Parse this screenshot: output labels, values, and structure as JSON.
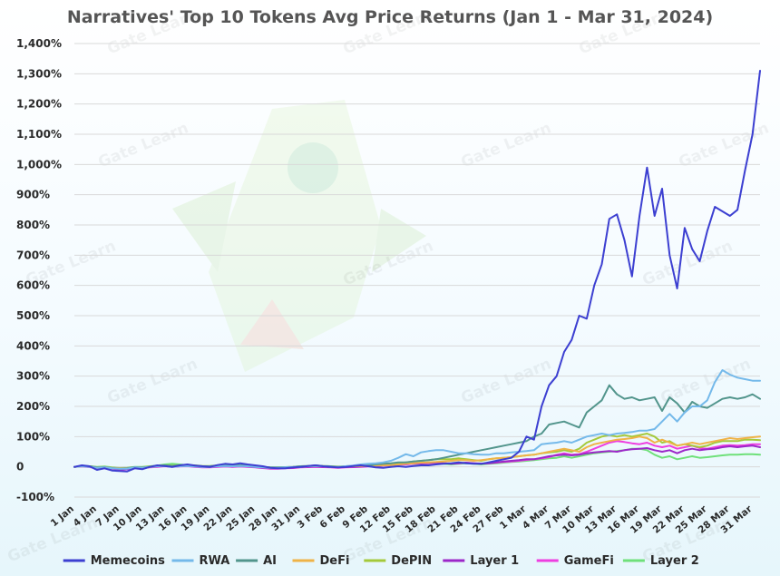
{
  "chart_data": {
    "type": "line",
    "title": "Narratives' Top 10 Tokens Avg Price Returns (Jan 1 - Mar 31, 2024)",
    "xlabel": "",
    "ylabel": "",
    "ylim": [
      -100,
      1400
    ],
    "y_ticks": [
      -100,
      0,
      100,
      200,
      300,
      400,
      500,
      600,
      700,
      800,
      900,
      1000,
      1100,
      1200,
      1300,
      1400
    ],
    "y_tick_labels": [
      "-100%",
      "0",
      "100%",
      "200%",
      "300%",
      "400%",
      "500%",
      "600%",
      "700%",
      "800%",
      "900%",
      "1,000%",
      "1,100%",
      "1,200%",
      "1,300%",
      "1,400%"
    ],
    "x_tick_labels": [
      "1 Jan",
      "4 Jan",
      "7 Jan",
      "10 Jan",
      "13 Jan",
      "16 Jan",
      "19 Jan",
      "22 Jan",
      "25 Jan",
      "28 Jan",
      "31 Jan",
      "3 Feb",
      "6 Feb",
      "9 Feb",
      "12 Feb",
      "15 Feb",
      "18 Feb",
      "21 Feb",
      "24 Feb",
      "27 Feb",
      "1 Mar",
      "4 Mar",
      "7 Mar",
      "10 Mar",
      "13 Mar",
      "16 Mar",
      "19 Mar",
      "22 Mar",
      "25 Mar",
      "28 Mar",
      "31 Mar"
    ],
    "grid": true,
    "legend_position": "bottom",
    "watermark": "Gate Learn",
    "series": [
      {
        "name": "Memecoins",
        "color": "#3c3fd1",
        "values": [
          0,
          5,
          2,
          -10,
          -5,
          -12,
          -14,
          -15,
          -5,
          -8,
          0,
          5,
          3,
          0,
          5,
          8,
          4,
          2,
          0,
          6,
          10,
          8,
          12,
          8,
          5,
          2,
          -3,
          -5,
          -5,
          -2,
          0,
          3,
          5,
          2,
          0,
          -2,
          0,
          3,
          5,
          2,
          -2,
          -3,
          0,
          2,
          0,
          3,
          5,
          5,
          8,
          10,
          12,
          15,
          12,
          10,
          10,
          15,
          20,
          25,
          30,
          50,
          100,
          90,
          200,
          270,
          300,
          380,
          420,
          500,
          490,
          600,
          670,
          820,
          835,
          750,
          630,
          830,
          990,
          830,
          920,
          700,
          590,
          790,
          720,
          680,
          780,
          860,
          845,
          830,
          850,
          980,
          1100,
          1310
        ]
      },
      {
        "name": "RWA",
        "color": "#74b9ea",
        "values": [
          0,
          2,
          0,
          -3,
          -2,
          -5,
          -6,
          -6,
          -2,
          -3,
          0,
          2,
          3,
          0,
          2,
          3,
          1,
          0,
          0,
          2,
          3,
          2,
          3,
          2,
          0,
          -2,
          -3,
          -3,
          -2,
          -1,
          0,
          2,
          3,
          2,
          0,
          0,
          2,
          4,
          8,
          10,
          12,
          15,
          20,
          30,
          42,
          35,
          48,
          52,
          55,
          55,
          50,
          45,
          45,
          42,
          40,
          40,
          45,
          45,
          48,
          50,
          52,
          55,
          75,
          78,
          80,
          85,
          80,
          90,
          100,
          105,
          110,
          105,
          110,
          112,
          115,
          120,
          120,
          125,
          150,
          175,
          150,
          180,
          200,
          200,
          220,
          280,
          320,
          305,
          295,
          290,
          285,
          285
        ]
      },
      {
        "name": "AI",
        "color": "#52958c",
        "values": [
          0,
          3,
          2,
          -2,
          -1,
          -4,
          -6,
          -5,
          -1,
          -2,
          0,
          2,
          5,
          3,
          5,
          6,
          4,
          2,
          2,
          4,
          5,
          4,
          5,
          4,
          2,
          0,
          -2,
          -2,
          -1,
          0,
          2,
          3,
          5,
          3,
          2,
          0,
          2,
          3,
          5,
          5,
          8,
          10,
          12,
          15,
          15,
          18,
          20,
          22,
          25,
          30,
          35,
          40,
          45,
          50,
          55,
          60,
          65,
          70,
          75,
          80,
          85,
          100,
          110,
          140,
          145,
          150,
          140,
          130,
          180,
          200,
          220,
          270,
          240,
          225,
          230,
          220,
          225,
          230,
          185,
          230,
          210,
          180,
          215,
          200,
          195,
          210,
          225,
          230,
          225,
          230,
          240,
          225
        ]
      },
      {
        "name": "DeFi",
        "color": "#efb347",
        "values": [
          0,
          2,
          1,
          -2,
          -1,
          -3,
          -5,
          -5,
          -2,
          -2,
          0,
          2,
          4,
          2,
          3,
          4,
          3,
          1,
          1,
          3,
          4,
          3,
          4,
          3,
          1,
          -1,
          -3,
          -3,
          -2,
          -1,
          1,
          2,
          3,
          2,
          1,
          0,
          1,
          2,
          3,
          3,
          4,
          5,
          6,
          8,
          10,
          12,
          14,
          15,
          16,
          18,
          20,
          22,
          22,
          20,
          22,
          25,
          28,
          30,
          32,
          35,
          38,
          40,
          45,
          50,
          55,
          60,
          55,
          50,
          65,
          75,
          80,
          85,
          90,
          92,
          95,
          100,
          95,
          80,
          90,
          80,
          70,
          75,
          80,
          75,
          80,
          85,
          90,
          95,
          92,
          95,
          98,
          100
        ]
      },
      {
        "name": "DePIN",
        "color": "#a4c93a",
        "values": [
          0,
          3,
          2,
          -1,
          0,
          -3,
          -5,
          -4,
          -1,
          -1,
          1,
          3,
          5,
          4,
          5,
          6,
          5,
          3,
          3,
          5,
          6,
          5,
          5,
          4,
          2,
          0,
          -2,
          -2,
          -1,
          0,
          2,
          3,
          4,
          3,
          2,
          1,
          2,
          3,
          4,
          5,
          6,
          8,
          10,
          12,
          15,
          18,
          20,
          22,
          25,
          25,
          25,
          28,
          25,
          22,
          20,
          25,
          28,
          30,
          32,
          35,
          38,
          40,
          45,
          48,
          50,
          55,
          50,
          60,
          80,
          90,
          100,
          105,
          100,
          105,
          100,
          105,
          110,
          100,
          80,
          85,
          70,
          75,
          70,
          65,
          70,
          80,
          85,
          85,
          85,
          90,
          90,
          88
        ]
      },
      {
        "name": "Layer 1",
        "color": "#9c27c9",
        "values": [
          0,
          2,
          0,
          -3,
          -2,
          -5,
          -8,
          -7,
          -3,
          -3,
          -1,
          1,
          3,
          1,
          2,
          3,
          1,
          -1,
          -1,
          1,
          2,
          1,
          2,
          1,
          -1,
          -3,
          -5,
          -5,
          -4,
          -3,
          -1,
          0,
          1,
          0,
          -1,
          -2,
          -1,
          0,
          1,
          2,
          3,
          5,
          6,
          8,
          10,
          12,
          12,
          14,
          15,
          12,
          10,
          12,
          14,
          12,
          10,
          12,
          15,
          18,
          20,
          22,
          25,
          25,
          30,
          35,
          38,
          40,
          38,
          40,
          45,
          48,
          50,
          52,
          50,
          55,
          58,
          60,
          62,
          55,
          50,
          55,
          45,
          55,
          60,
          55,
          58,
          60,
          65,
          68,
          65,
          68,
          70,
          65
        ]
      },
      {
        "name": "GameFi",
        "color": "#ee3ee0",
        "values": [
          0,
          1,
          -1,
          -4,
          -3,
          -6,
          -9,
          -8,
          -4,
          -4,
          -2,
          0,
          2,
          0,
          1,
          2,
          0,
          -2,
          -2,
          0,
          1,
          0,
          1,
          0,
          -2,
          -4,
          -6,
          -6,
          -5,
          -4,
          -2,
          -1,
          0,
          -1,
          -2,
          -3,
          -2,
          -1,
          0,
          1,
          2,
          4,
          5,
          7,
          8,
          10,
          11,
          12,
          13,
          12,
          11,
          12,
          13,
          12,
          11,
          12,
          14,
          16,
          18,
          20,
          23,
          25,
          28,
          32,
          40,
          45,
          40,
          42,
          50,
          60,
          70,
          80,
          85,
          82,
          78,
          75,
          80,
          70,
          65,
          70,
          60,
          65,
          70,
          62,
          60,
          65,
          70,
          72,
          70,
          72,
          75,
          75
        ]
      },
      {
        "name": "Layer 2",
        "color": "#6fe07a",
        "values": [
          0,
          3,
          2,
          0,
          1,
          -2,
          -4,
          -3,
          0,
          0,
          2,
          4,
          8,
          10,
          8,
          5,
          3,
          2,
          2,
          4,
          5,
          4,
          4,
          3,
          1,
          -1,
          -3,
          -3,
          -2,
          -1,
          1,
          2,
          3,
          2,
          1,
          0,
          1,
          2,
          3,
          3,
          4,
          6,
          7,
          8,
          9,
          10,
          10,
          11,
          12,
          10,
          8,
          10,
          12,
          10,
          8,
          10,
          12,
          14,
          16,
          18,
          20,
          22,
          25,
          28,
          30,
          35,
          30,
          35,
          40,
          45,
          48,
          50,
          52,
          55,
          60,
          60,
          55,
          40,
          30,
          35,
          25,
          30,
          35,
          30,
          32,
          35,
          38,
          40,
          40,
          42,
          42,
          40
        ]
      }
    ]
  }
}
